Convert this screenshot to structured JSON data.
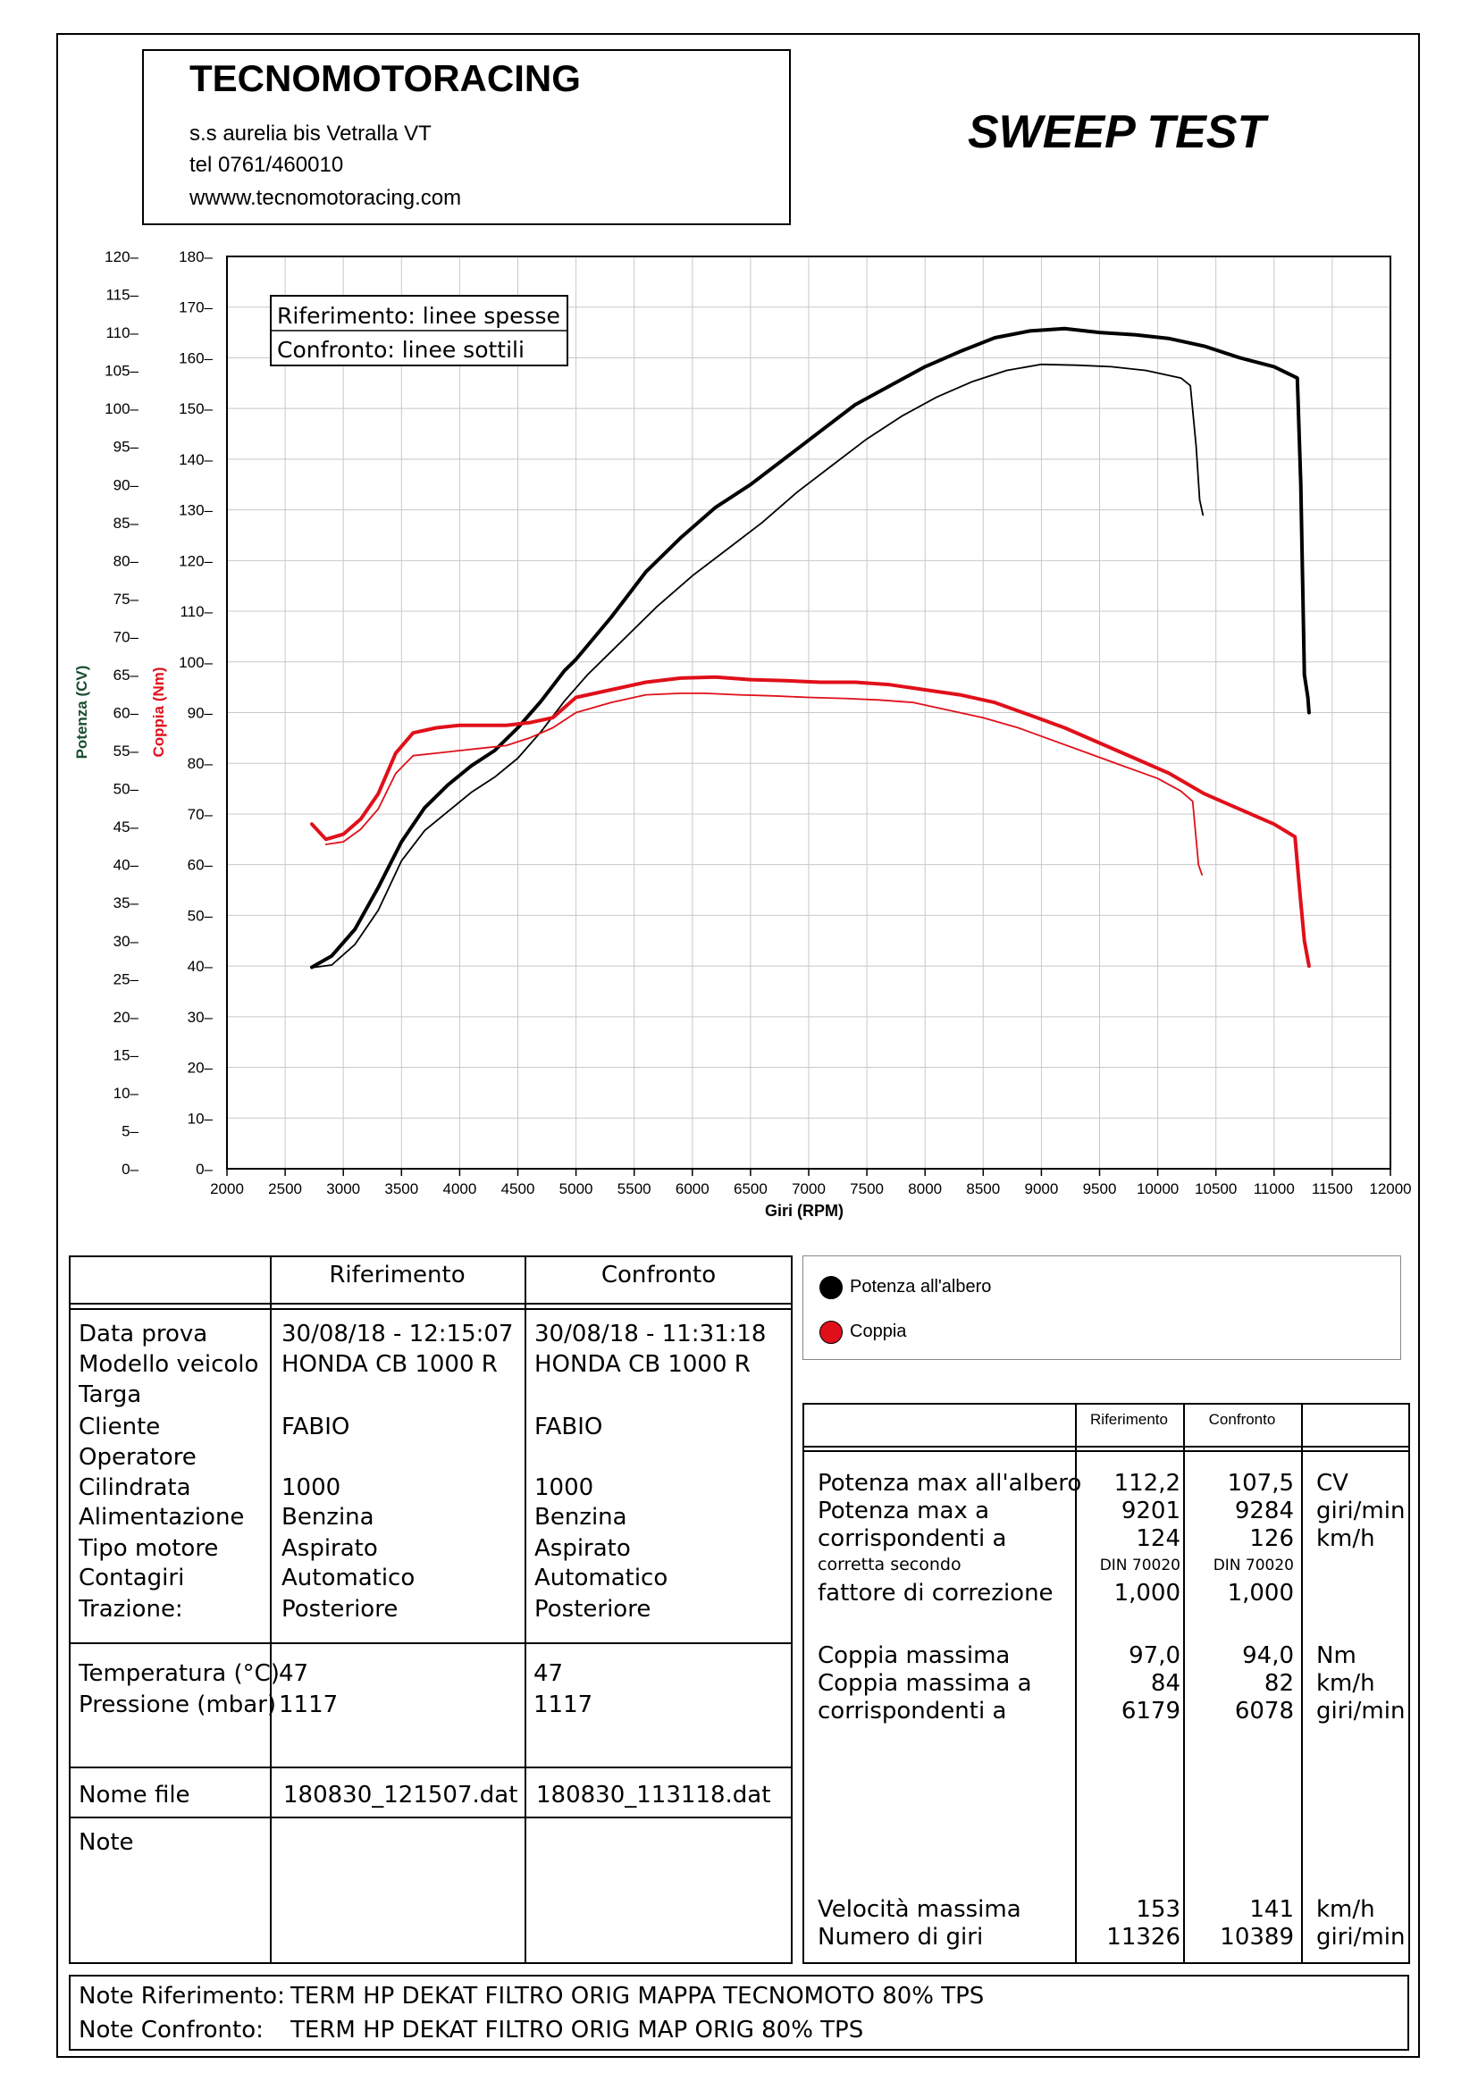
{
  "header": {
    "company": "TECNOMOTORACING",
    "address": "s.s aurelia bis  Vetralla  VT",
    "phone": "tel 0761/460010",
    "web": "wwww.tecnomotoracing.com",
    "title": "SWEEP TEST"
  },
  "chart_data": {
    "type": "line",
    "xlabel": "Giri (RPM)",
    "ylabel_left": "Potenza (CV)",
    "ylabel_right": "Coppia (Nm)",
    "xlim": [
      2000,
      12000
    ],
    "ylim_power": [
      0,
      120
    ],
    "ylim_torque": [
      0,
      180
    ],
    "x_ticks": [
      "2000",
      "2500",
      "3000",
      "3500",
      "4000",
      "4500",
      "5000",
      "5500",
      "6000",
      "6500",
      "7000",
      "7500",
      "8000",
      "8500",
      "9000",
      "9500",
      "10000",
      "10500",
      "11000",
      "11500",
      "12000"
    ],
    "power_ticks": [
      "0–",
      "5–",
      "10–",
      "15–",
      "20–",
      "25–",
      "30–",
      "35–",
      "40–",
      "45–",
      "50–",
      "55–",
      "60–",
      "65–",
      "70–",
      "75–",
      "80–",
      "85–",
      "90–",
      "95–",
      "100–",
      "105–",
      "110–",
      "115–",
      "120–"
    ],
    "torque_ticks": [
      "0–",
      "10–",
      "20–",
      "30–",
      "40–",
      "50–",
      "60–",
      "70–",
      "80–",
      "90–",
      "100–",
      "110–",
      "120–",
      "130–",
      "140–",
      "150–",
      "160–",
      "170–",
      "180–"
    ],
    "grid": true,
    "legend_inner": [
      "Riferimento: linee spesse",
      "Confronto: linee sottili"
    ],
    "series": [
      {
        "name": "Potenza all'albero",
        "run": "Riferimento",
        "axis": "power",
        "color": "#000000",
        "x": [
          2730,
          2900,
          3100,
          3300,
          3500,
          3700,
          3900,
          4100,
          4300,
          4500,
          4700,
          4900,
          5000,
          5300,
          5600,
          5900,
          6200,
          6500,
          6800,
          7100,
          7400,
          7700,
          8000,
          8300,
          8600,
          8900,
          9200,
          9500,
          9800,
          10100,
          10400,
          10700,
          11000,
          11200,
          11230,
          11260,
          11290,
          11300
        ],
        "y": [
          26.5,
          28,
          31.5,
          37,
          43,
          47.5,
          50.5,
          53,
          55,
          58,
          61.5,
          65.5,
          67,
          72.5,
          78.5,
          83,
          87,
          90,
          93.5,
          97,
          100.5,
          103,
          105.5,
          107.5,
          109.3,
          110.2,
          110.5,
          110,
          109.7,
          109.2,
          108.2,
          106.7,
          105.5,
          104,
          90,
          65,
          62,
          60
        ]
      },
      {
        "name": "Potenza all'albero",
        "run": "Confronto",
        "axis": "power",
        "color": "#000000",
        "x": [
          2750,
          2900,
          3100,
          3300,
          3500,
          3700,
          3900,
          4100,
          4300,
          4500,
          4700,
          4900,
          5100,
          5400,
          5700,
          6000,
          6300,
          6600,
          6900,
          7200,
          7500,
          7800,
          8100,
          8400,
          8700,
          9000,
          9300,
          9600,
          9900,
          10200,
          10280,
          10330,
          10360,
          10389
        ],
        "y": [
          26.5,
          26.8,
          29.5,
          34,
          40.5,
          44.5,
          47,
          49.5,
          51.5,
          54,
          57.5,
          61.5,
          65,
          69.5,
          74,
          78,
          81.5,
          85,
          89,
          92.5,
          96,
          99,
          101.5,
          103.5,
          105,
          105.8,
          105.7,
          105.5,
          105,
          104,
          103,
          95,
          88,
          86
        ]
      },
      {
        "name": "Coppia",
        "run": "Riferimento",
        "axis": "torque",
        "color": "#e0101a",
        "x": [
          2730,
          2850,
          3000,
          3150,
          3300,
          3450,
          3600,
          3800,
          4000,
          4200,
          4400,
          4600,
          4800,
          5000,
          5300,
          5600,
          5900,
          6200,
          6500,
          6800,
          7100,
          7400,
          7700,
          8000,
          8300,
          8600,
          8900,
          9200,
          9500,
          9800,
          10100,
          10400,
          10700,
          11000,
          11180,
          11220,
          11260,
          11300
        ],
        "y": [
          68,
          65,
          66,
          69,
          74,
          82,
          86,
          87,
          87.5,
          87.5,
          87.5,
          88,
          89,
          93,
          94.5,
          96,
          96.8,
          97,
          96.5,
          96.3,
          96,
          96,
          95.5,
          94.5,
          93.5,
          92,
          89.5,
          87,
          84,
          81,
          78,
          74,
          71,
          68,
          65.5,
          55,
          45,
          40
        ]
      },
      {
        "name": "Coppia",
        "run": "Confronto",
        "axis": "torque",
        "color": "#e0101a",
        "x": [
          2850,
          3000,
          3150,
          3300,
          3450,
          3600,
          3800,
          4000,
          4200,
          4400,
          4600,
          4800,
          5000,
          5300,
          5600,
          5900,
          6100,
          6400,
          6700,
          7000,
          7300,
          7600,
          7900,
          8200,
          8500,
          8800,
          9100,
          9400,
          9700,
          10000,
          10200,
          10300,
          10350,
          10380
        ],
        "y": [
          64,
          64.5,
          67,
          71,
          78,
          81.5,
          82,
          82.5,
          83,
          83.5,
          85,
          87,
          90,
          92,
          93.5,
          93.8,
          93.8,
          93.5,
          93.3,
          93,
          92.8,
          92.5,
          92,
          90.5,
          89,
          87,
          84.5,
          82,
          79.5,
          77,
          74.5,
          72.5,
          60,
          58
        ]
      }
    ]
  },
  "legend": {
    "items": [
      {
        "label": "Potenza all'albero",
        "color": "#000000"
      },
      {
        "label": "Coppia",
        "color": "#e0101a"
      }
    ]
  },
  "left_table": {
    "head_ref": "Riferimento",
    "head_conf": "Confronto",
    "labels": [
      "Data prova",
      "Modello veicolo",
      "Targa",
      "Cliente",
      "Operatore",
      "Cilindrata",
      "Alimentazione",
      "Tipo motore",
      "Contagiri",
      "Trazione:"
    ],
    "ref": [
      "30/08/18 - 12:15:07",
      "HONDA CB 1000 R",
      "",
      "FABIO",
      "",
      "1000",
      "Benzina",
      "Aspirato",
      "Automatico",
      "Posteriore"
    ],
    "conf": [
      "30/08/18 - 11:31:18",
      "HONDA CB 1000 R",
      "",
      "FABIO",
      "",
      "1000",
      "Benzina",
      "Aspirato",
      "Automatico",
      "Posteriore"
    ],
    "temp_label": "Temperatura (°C)",
    "temp_ref": "47",
    "temp_conf": "47",
    "press_label": "Pressione (mbar)",
    "press_ref": "1117",
    "press_conf": "1117",
    "file_label": "Nome file",
    "file_ref": "180830_121507.dat",
    "file_conf": "180830_113118.dat",
    "note_label": "Note"
  },
  "right_table": {
    "head_ref": "Riferimento",
    "head_conf": "Confronto",
    "pmax_label": "Potenza max all'albero",
    "pmax_ref": "112,2",
    "pmax_conf": "107,5",
    "pmax_unit": "CV",
    "prpm_label": "Potenza max a",
    "prpm_ref": "9201",
    "prpm_conf": "9284",
    "prpm_unit": "giri/min",
    "pspd_label": "corrispondenti a",
    "pspd_ref": "124",
    "pspd_conf": "126",
    "pspd_unit": "km/h",
    "corr_label": "corretta secondo",
    "corr_ref": "DIN 70020",
    "corr_conf": "DIN 70020",
    "fact_label": "fattore di correzione",
    "fact_ref": "1,000",
    "fact_conf": "1,000",
    "cmax_label": "Coppia massima",
    "cmax_ref": "97,0",
    "cmax_conf": "94,0",
    "cmax_unit": "Nm",
    "cspd_label": "Coppia massima a",
    "cspd_ref": "84",
    "cspd_conf": "82",
    "cspd_unit": "km/h",
    "crpm_label": "corrispondenti a",
    "crpm_ref": "6179",
    "crpm_conf": "6078",
    "crpm_unit": "giri/min",
    "vmax_label": "Velocità massima",
    "vmax_ref": "153",
    "vmax_conf": "141",
    "vmax_unit": "km/h",
    "rpm_label": "Numero di giri",
    "rpm_ref": "11326",
    "rpm_conf": "10389",
    "rpm_unit": "giri/min"
  },
  "notes": {
    "ref_label": "Note Riferimento:",
    "ref_text": "TERM HP DEKAT FILTRO ORIG MAPPA TECNOMOTO 80% TPS",
    "conf_label": "Note Confronto:",
    "conf_text": "TERM HP DEKAT  FILTRO ORIG MAP ORIG 80% TPS"
  }
}
